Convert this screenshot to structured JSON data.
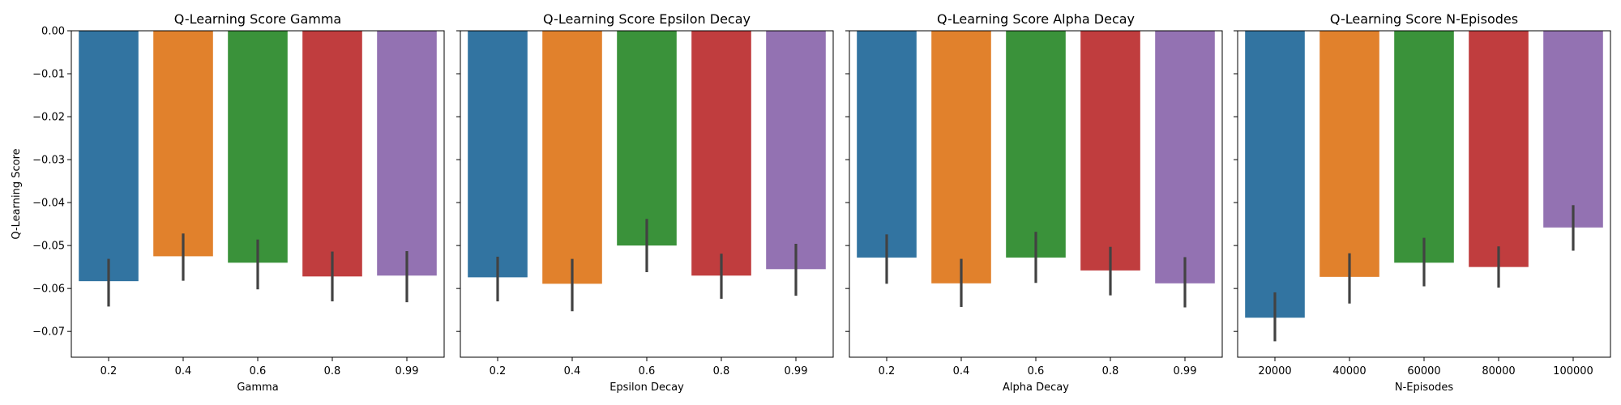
{
  "figure": {
    "shared_ylabel": "Q-Learning Score",
    "palette": [
      "#3274a1",
      "#e1812c",
      "#3a923a",
      "#c03d3e",
      "#9372b2"
    ],
    "errorbar_color": "#424242",
    "ylim": [
      -0.076,
      0.0
    ],
    "yticks": [
      0.0,
      -0.01,
      -0.02,
      -0.03,
      -0.04,
      -0.05,
      -0.06,
      -0.07
    ],
    "ytick_labels": [
      "0.00",
      "−0.01",
      "−0.02",
      "−0.03",
      "−0.04",
      "−0.05",
      "−0.06",
      "−0.07"
    ]
  },
  "chart_data": [
    {
      "type": "bar",
      "title": "Q-Learning Score Gamma",
      "xlabel": "Gamma",
      "ylabel": "Q-Learning Score",
      "categories": [
        "0.2",
        "0.4",
        "0.6",
        "0.8",
        "0.99"
      ],
      "values": [
        -0.0583,
        -0.0525,
        -0.054,
        -0.0572,
        -0.057
      ],
      "error_low": [
        -0.0642,
        -0.0582,
        -0.0602,
        -0.063,
        -0.0632
      ],
      "error_high": [
        -0.0531,
        -0.0472,
        -0.0486,
        -0.0514,
        -0.0513
      ],
      "ylim": [
        -0.076,
        0.0
      ]
    },
    {
      "type": "bar",
      "title": "Q-Learning Score Epsilon Decay",
      "xlabel": "Epsilon Decay",
      "ylabel": "",
      "categories": [
        "0.2",
        "0.4",
        "0.6",
        "0.8",
        "0.99"
      ],
      "values": [
        -0.0574,
        -0.0589,
        -0.05,
        -0.057,
        -0.0555
      ],
      "error_low": [
        -0.063,
        -0.0653,
        -0.0562,
        -0.0624,
        -0.0617
      ],
      "error_high": [
        -0.0526,
        -0.0531,
        -0.0438,
        -0.0519,
        -0.0496
      ],
      "ylim": [
        -0.076,
        0.0
      ]
    },
    {
      "type": "bar",
      "title": "Q-Learning Score Alpha Decay",
      "xlabel": "Alpha Decay",
      "ylabel": "",
      "categories": [
        "0.2",
        "0.4",
        "0.6",
        "0.8",
        "0.99"
      ],
      "values": [
        -0.0528,
        -0.0588,
        -0.0528,
        -0.0558,
        -0.0588
      ],
      "error_low": [
        -0.0589,
        -0.0643,
        -0.0587,
        -0.0616,
        -0.0644
      ],
      "error_high": [
        -0.0474,
        -0.0531,
        -0.0468,
        -0.0503,
        -0.0527
      ],
      "ylim": [
        -0.076,
        0.0
      ]
    },
    {
      "type": "bar",
      "title": "Q-Learning Score N-Episodes",
      "xlabel": "N-Episodes",
      "ylabel": "",
      "categories": [
        "20000",
        "40000",
        "60000",
        "80000",
        "100000"
      ],
      "values": [
        -0.0668,
        -0.0573,
        -0.054,
        -0.055,
        -0.0458
      ],
      "error_low": [
        -0.0723,
        -0.0635,
        -0.0595,
        -0.0598,
        -0.0512
      ],
      "error_high": [
        -0.0609,
        -0.0518,
        -0.0482,
        -0.0502,
        -0.0406
      ],
      "ylim": [
        -0.076,
        0.0
      ]
    }
  ]
}
